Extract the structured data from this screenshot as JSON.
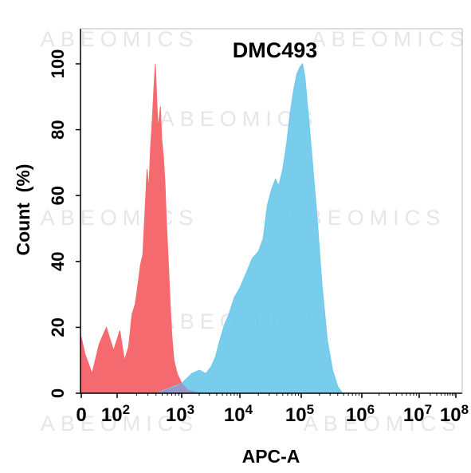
{
  "chart_data": {
    "type": "area",
    "title": "DMC493",
    "xlabel": "APC-A",
    "ylabel": "Count  (%)",
    "x_scale": "biexponential",
    "ylim": [
      0,
      100
    ],
    "x_ticks": [
      {
        "label_base": "0",
        "label_exp": ""
      },
      {
        "label_base": "10",
        "label_exp": "2"
      },
      {
        "label_base": "10",
        "label_exp": "3"
      },
      {
        "label_base": "10",
        "label_exp": "4"
      },
      {
        "label_base": "10",
        "label_exp": "5"
      },
      {
        "label_base": "10",
        "label_exp": "6"
      },
      {
        "label_base": "10",
        "label_exp": "7"
      },
      {
        "label_base": "10",
        "label_exp": "8"
      }
    ],
    "y_ticks": [
      "0",
      "20",
      "40",
      "60",
      "80",
      "100"
    ],
    "grid": false,
    "watermark": "ABEOMICS",
    "series": [
      {
        "color": "#f46a6f",
        "points": [
          [
            0,
            17
          ],
          [
            10,
            12
          ],
          [
            30,
            6
          ],
          [
            50,
            15
          ],
          [
            70,
            20
          ],
          [
            90,
            13
          ],
          [
            110,
            19
          ],
          [
            130,
            10
          ],
          [
            150,
            14
          ],
          [
            170,
            24
          ],
          [
            190,
            27
          ],
          [
            210,
            33
          ],
          [
            230,
            39
          ],
          [
            250,
            42
          ],
          [
            270,
            55
          ],
          [
            290,
            68
          ],
          [
            310,
            62
          ],
          [
            330,
            75
          ],
          [
            350,
            83
          ],
          [
            370,
            92
          ],
          [
            390,
            100
          ],
          [
            410,
            90
          ],
          [
            430,
            80
          ],
          [
            450,
            84
          ],
          [
            470,
            87
          ],
          [
            490,
            77
          ],
          [
            520,
            72
          ],
          [
            550,
            64
          ],
          [
            580,
            52
          ],
          [
            620,
            40
          ],
          [
            660,
            28
          ],
          [
            700,
            18
          ],
          [
            760,
            10
          ],
          [
            850,
            6
          ],
          [
            1000,
            3
          ],
          [
            1300,
            1
          ],
          [
            2000,
            0
          ]
        ]
      },
      {
        "color": "#6dc8ea",
        "points": [
          [
            150,
            0
          ],
          [
            400,
            0
          ],
          [
            1000,
            3
          ],
          [
            1500,
            6
          ],
          [
            2000,
            7
          ],
          [
            2600,
            6
          ],
          [
            3200,
            8
          ],
          [
            3800,
            11
          ],
          [
            4500,
            16
          ],
          [
            5500,
            21
          ],
          [
            6500,
            24
          ],
          [
            8000,
            29
          ],
          [
            10000,
            32
          ],
          [
            13000,
            37
          ],
          [
            16000,
            41
          ],
          [
            20000,
            43
          ],
          [
            24000,
            47
          ],
          [
            28000,
            57
          ],
          [
            33000,
            62
          ],
          [
            38000,
            65
          ],
          [
            43000,
            63
          ],
          [
            50000,
            68
          ],
          [
            58000,
            76
          ],
          [
            66000,
            85
          ],
          [
            75000,
            92
          ],
          [
            85000,
            97
          ],
          [
            95000,
            99
          ],
          [
            105000,
            100
          ],
          [
            115000,
            96
          ],
          [
            130000,
            85
          ],
          [
            150000,
            72
          ],
          [
            180000,
            55
          ],
          [
            220000,
            33
          ],
          [
            270000,
            16
          ],
          [
            330000,
            7
          ],
          [
            400000,
            2
          ],
          [
            480000,
            0
          ]
        ]
      }
    ]
  }
}
